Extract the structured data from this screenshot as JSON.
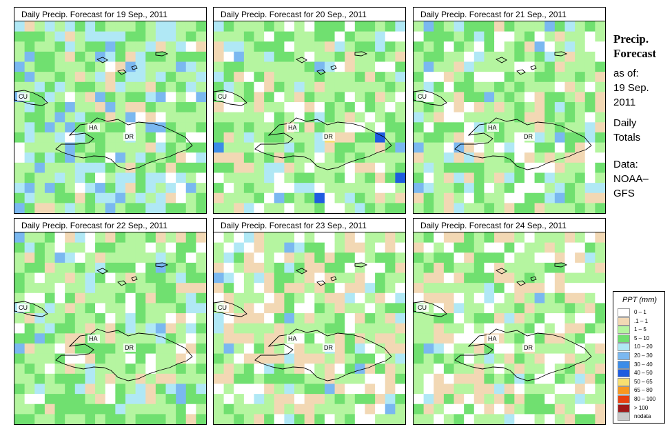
{
  "panels": [
    {
      "title": "Daily Precip. Forecast for  19 Sep., 2011",
      "seed": 11,
      "profile": "wet"
    },
    {
      "title": "Daily Precip. Forecast for  20 Sep., 2011",
      "seed": 23,
      "profile": "mixed"
    },
    {
      "title": "Daily Precip. Forecast for  21 Sep., 2011",
      "seed": 37,
      "profile": "mixed"
    },
    {
      "title": "Daily Precip. Forecast for  22 Sep., 2011",
      "seed": 41,
      "profile": "mixed"
    },
    {
      "title": "Daily Precip. Forecast for  23 Sep., 2011",
      "seed": 53,
      "profile": "dry"
    },
    {
      "title": "Daily Precip. Forecast for  24 Sep., 2011",
      "seed": 67,
      "profile": "dry"
    }
  ],
  "map_labels": {
    "cu": "CU",
    "ha": "HA",
    "dr": "DR"
  },
  "side": {
    "title_1": "Precip.",
    "title_2": "Forecast",
    "as_of": "as of:",
    "date_1": "19 Sep.",
    "date_2": "2011",
    "daily": "Daily",
    "totals": "Totals",
    "data_label": "Data:",
    "source_1": "NOAA–",
    "source_2": "GFS"
  },
  "legend": {
    "title": "PPT (mm)",
    "items": [
      {
        "label": "0 – 1",
        "color": "#ffffff"
      },
      {
        "label": ".1 – 1",
        "color": "#f2d8b4"
      },
      {
        "label": "1 – 5",
        "color": "#b5f5a0"
      },
      {
        "label": "5 – 10",
        "color": "#70e070"
      },
      {
        "label": "10 – 20",
        "color": "#b0e8f5"
      },
      {
        "label": "20 – 30",
        "color": "#7ab8f0"
      },
      {
        "label": "30 – 40",
        "color": "#3c8ce8"
      },
      {
        "label": "40 – 50",
        "color": "#1e5ce0"
      },
      {
        "label": "50 – 65",
        "color": "#f8e070"
      },
      {
        "label": "65 – 80",
        "color": "#f89820"
      },
      {
        "label": "80 – 100",
        "color": "#e84010"
      },
      {
        "label": "> 100",
        "color": "#a01818"
      },
      {
        "label": "nodata",
        "color": "#c8c8c8"
      }
    ]
  }
}
